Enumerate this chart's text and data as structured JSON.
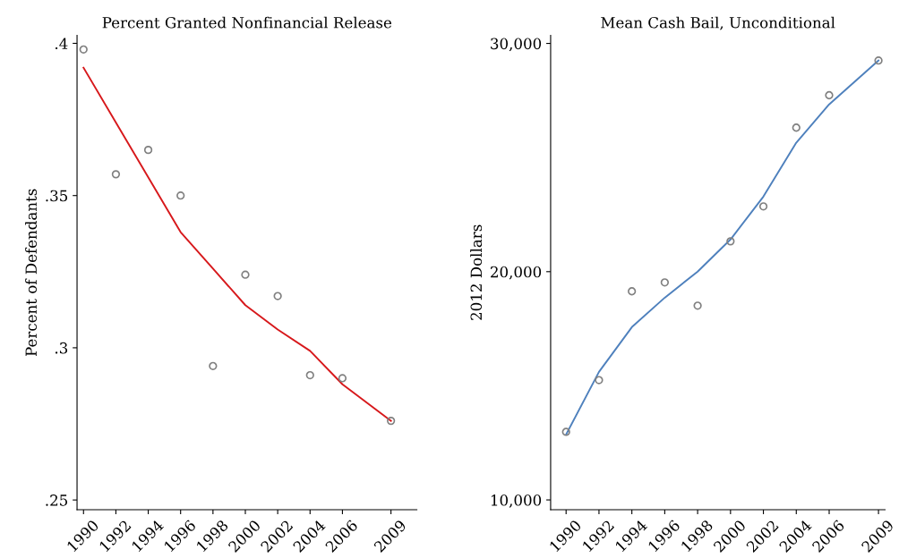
{
  "chart_data": [
    {
      "type": "scatter",
      "title": "Percent Granted Nonfinancial Release",
      "ylabel": "Percent of Defendants",
      "x": [
        1990,
        1992,
        1994,
        1996,
        1998,
        2000,
        2002,
        2004,
        2006,
        2009
      ],
      "series": [
        {
          "color": "#808080",
          "marker": "circle",
          "values": [
            0.398,
            0.357,
            0.365,
            0.35,
            0.294,
            0.324,
            0.317,
            0.291,
            0.29,
            0.276
          ]
        },
        {
          "type": "line",
          "color": "#d7191c",
          "marker": "none",
          "values": [
            0.392,
            0.374,
            0.356,
            0.338,
            0.326,
            0.314,
            0.306,
            0.299,
            0.288,
            0.276
          ]
        }
      ],
      "xlim": [
        1989.6,
        2010.6
      ],
      "xticks": [
        1990,
        1992,
        1994,
        1996,
        1998,
        2000,
        2002,
        2004,
        2006,
        2009
      ],
      "ylim": [
        0.2468,
        0.4026
      ],
      "yticks": [
        {
          "value": 0.25,
          "label": ".25"
        },
        {
          "value": 0.3,
          "label": ".3"
        },
        {
          "value": 0.35,
          "label": ".35"
        },
        {
          "value": 0.4,
          "label": ".4"
        }
      ],
      "grid": false,
      "legend": false
    },
    {
      "type": "scatter",
      "title": "Mean Cash Bail, Unconditional",
      "ylabel": "2012 Dollars",
      "x": [
        1990,
        1992,
        1994,
        1996,
        1998,
        2000,
        2002,
        2004,
        2006,
        2009
      ],
      "series": [
        {
          "color": "#808080",
          "marker": "circle",
          "values": [
            12980,
            15250,
            19140,
            19530,
            18510,
            21330,
            22860,
            26310,
            27730,
            29250
          ]
        },
        {
          "type": "line",
          "color": "#4f81bd",
          "marker": "none",
          "values": [
            12860,
            15610,
            17570,
            18860,
            20000,
            21410,
            23290,
            25650,
            27330,
            29250
          ]
        }
      ],
      "xlim": [
        1989.06,
        2009.4
      ],
      "xticks": [
        1990,
        1992,
        1994,
        1996,
        1998,
        2000,
        2002,
        2004,
        2006,
        2009
      ],
      "ylim": [
        9570,
        30350
      ],
      "yticks": [
        {
          "value": 10000,
          "label": "10,000"
        },
        {
          "value": 20000,
          "label": "20,000"
        },
        {
          "value": 30000,
          "label": "30,000"
        }
      ],
      "grid": false,
      "legend": false
    }
  ]
}
